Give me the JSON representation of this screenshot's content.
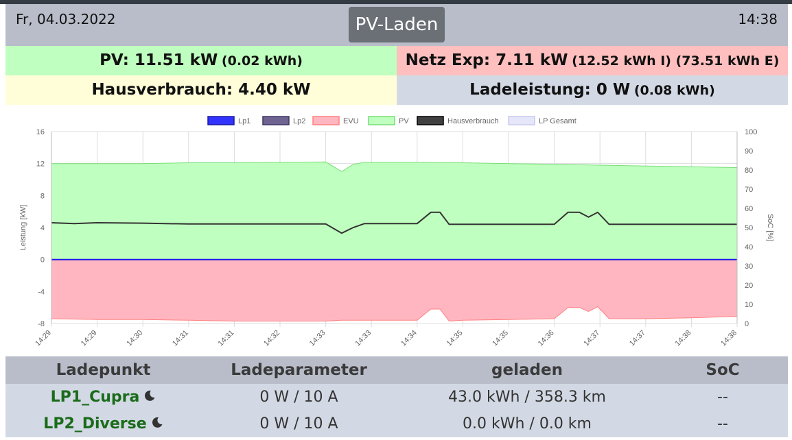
{
  "header": {
    "date": "Fr, 04.03.2022",
    "mode": "PV-Laden",
    "time": "14:38"
  },
  "info": {
    "pv_main": "PV: 11.51 kW",
    "pv_sub": "(0.02 kWh)",
    "netz_main": "Netz Exp: 7.11 kW",
    "netz_sub": "(12.52 kWh I) (73.51 kWh E)",
    "haus_main": "Hausverbrauch: 4.40 kW",
    "lade_main": "Ladeleistung: 0 W",
    "lade_sub": "(0.08 kWh)"
  },
  "colors": {
    "pv_bg": "#bfffbf",
    "netz_bg": "#ffbfbf",
    "haus_bg": "#fffed9",
    "lade_bg": "#d3d9e4",
    "lp_name": "#1a6b1a"
  },
  "chart_data": {
    "type": "area",
    "legend": [
      {
        "name": "Lp1",
        "color": "#3333ff",
        "border": "#1a1aa0"
      },
      {
        "name": "Lp2",
        "color": "#6f6391",
        "border": "#3f3560"
      },
      {
        "name": "EVU",
        "color": "#ffb6c1",
        "border": "#ff8080"
      },
      {
        "name": "PV",
        "color": "#bfffbf",
        "border": "#77dd77"
      },
      {
        "name": "Hausverbrauch",
        "color": "#404040",
        "border": "#000000"
      },
      {
        "name": "LP Gesamt",
        "color": "#e6e6fa",
        "border": "#c8c8f0"
      }
    ],
    "ylabel_left": "Leistung [kW]",
    "ylabel_right": "SoC [%]",
    "ylim_left": [
      -8,
      16
    ],
    "yticks_left": [
      16,
      12,
      8,
      4,
      0,
      -4,
      -8
    ],
    "ylim_right": [
      0,
      100
    ],
    "yticks_right": [
      100,
      90,
      80,
      70,
      60,
      50,
      40,
      30,
      20,
      10,
      0
    ],
    "x_tick_labels": [
      "14:29",
      "14:29",
      "14:30",
      "14:31",
      "14:31",
      "14:32",
      "14:33",
      "14:33",
      "14:34",
      "14:35",
      "14:35",
      "14:36",
      "14:37",
      "14:37",
      "14:38",
      "14:38"
    ],
    "x_count": 16,
    "grid": true,
    "series": [
      {
        "name": "PV",
        "x": [
          0,
          1,
          2,
          3,
          4,
          5,
          6,
          6.35,
          6.6,
          6.85,
          7,
          8,
          9,
          10,
          11,
          12,
          13,
          14,
          15
        ],
        "values": [
          12.0,
          12.0,
          12.0,
          12.1,
          12.1,
          12.15,
          12.2,
          11.0,
          11.9,
          12.15,
          12.15,
          12.15,
          12.1,
          12.0,
          11.9,
          11.8,
          11.7,
          11.6,
          11.5
        ]
      },
      {
        "name": "EVU",
        "x": [
          0,
          1,
          2,
          3,
          4,
          5,
          6,
          6.35,
          6.6,
          6.85,
          7,
          8,
          8.3,
          8.5,
          8.7,
          9,
          10,
          11,
          11.3,
          11.55,
          11.75,
          11.95,
          12.2,
          13,
          14,
          15
        ],
        "values": [
          -7.4,
          -7.5,
          -7.5,
          -7.6,
          -7.7,
          -7.7,
          -7.7,
          -7.6,
          -7.6,
          -7.6,
          -7.6,
          -7.6,
          -6.2,
          -6.2,
          -7.7,
          -7.6,
          -7.5,
          -7.4,
          -6.0,
          -6.0,
          -6.5,
          -5.9,
          -7.4,
          -7.4,
          -7.3,
          -7.1
        ]
      },
      {
        "name": "Hausverbrauch",
        "x": [
          0,
          0.5,
          1,
          2,
          3,
          4,
          5,
          6,
          6.35,
          6.6,
          6.85,
          7,
          8,
          8.3,
          8.5,
          8.7,
          9,
          10,
          11,
          11.3,
          11.55,
          11.75,
          11.95,
          12.2,
          13,
          14,
          15
        ],
        "values": [
          4.6,
          4.5,
          4.6,
          4.55,
          4.45,
          4.45,
          4.45,
          4.45,
          3.3,
          4.0,
          4.5,
          4.5,
          4.5,
          5.9,
          5.9,
          4.4,
          4.4,
          4.4,
          4.4,
          5.9,
          5.9,
          5.3,
          5.9,
          4.4,
          4.4,
          4.4,
          4.4
        ]
      },
      {
        "name": "Lp1",
        "x": [
          0,
          15
        ],
        "values": [
          0,
          0
        ]
      },
      {
        "name": "Lp2",
        "x": [
          0,
          15
        ],
        "values": [
          0,
          0
        ]
      },
      {
        "name": "LP Gesamt",
        "x": [
          0,
          15
        ],
        "values": [
          0,
          0
        ]
      }
    ]
  },
  "table": {
    "headers": [
      "Ladepunkt",
      "Ladeparameter",
      "geladen",
      "SoC"
    ],
    "rows": [
      {
        "name": "LP1_Cupra",
        "param": "0 W / 10 A",
        "geladen": "43.0 kWh / 358.3 km",
        "soc": "--"
      },
      {
        "name": "LP2_Diverse",
        "param": "0 W / 10 A",
        "geladen": "0.0 kWh / 0.0 km",
        "soc": "--"
      }
    ]
  }
}
